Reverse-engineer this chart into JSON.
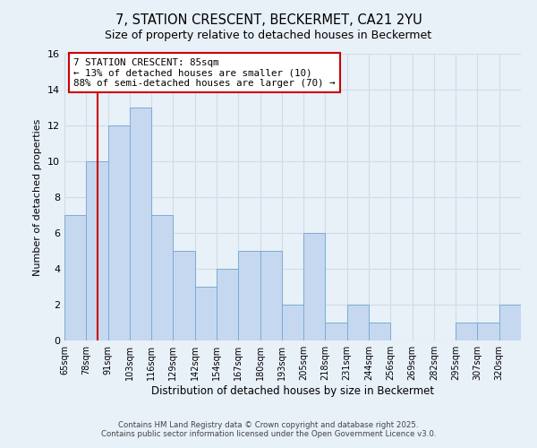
{
  "title": "7, STATION CRESCENT, BECKERMET, CA21 2YU",
  "subtitle": "Size of property relative to detached houses in Beckermet",
  "xlabel": "Distribution of detached houses by size in Beckermet",
  "ylabel": "Number of detached properties",
  "bar_color": "#c5d8f0",
  "bar_edge_color": "#7aadd4",
  "bin_labels": [
    "65sqm",
    "78sqm",
    "91sqm",
    "103sqm",
    "116sqm",
    "129sqm",
    "142sqm",
    "154sqm",
    "167sqm",
    "180sqm",
    "193sqm",
    "205sqm",
    "218sqm",
    "231sqm",
    "244sqm",
    "256sqm",
    "269sqm",
    "282sqm",
    "295sqm",
    "307sqm",
    "320sqm"
  ],
  "counts": [
    7,
    10,
    12,
    13,
    7,
    5,
    3,
    4,
    5,
    5,
    2,
    6,
    1,
    2,
    1,
    0,
    0,
    0,
    1,
    1,
    2
  ],
  "ylim": [
    0,
    16
  ],
  "yticks": [
    0,
    2,
    4,
    6,
    8,
    10,
    12,
    14,
    16
  ],
  "annotation_title": "7 STATION CRESCENT: 85sqm",
  "annotation_line1": "← 13% of detached houses are smaller (10)",
  "annotation_line2": "88% of semi-detached houses are larger (70) →",
  "annotation_box_color": "#ffffff",
  "annotation_box_edge_color": "#cc0000",
  "marker_line_color": "#cc0000",
  "grid_color": "#d0dce8",
  "background_color": "#e8f0f8",
  "footer_line1": "Contains HM Land Registry data © Crown copyright and database right 2025.",
  "footer_line2": "Contains public sector information licensed under the Open Government Licence v3.0."
}
